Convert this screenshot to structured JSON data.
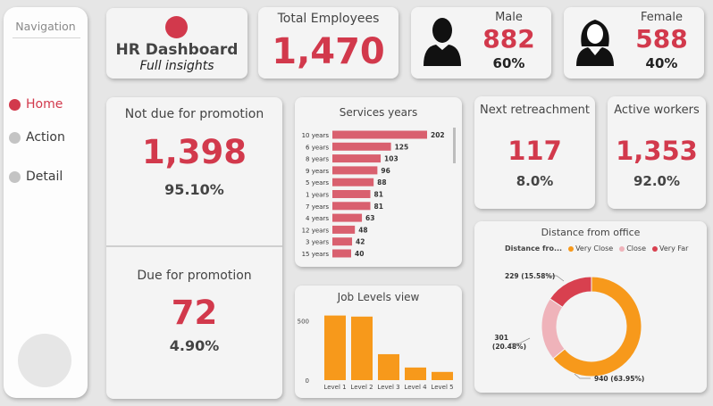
{
  "nav": {
    "title": "Navigation",
    "items": [
      {
        "label": "Home",
        "active": true
      },
      {
        "label": "Action",
        "active": false
      },
      {
        "label": "Detail",
        "active": false
      }
    ]
  },
  "header": {
    "title": "HR Dashboard",
    "subtitle": "Full insights",
    "total_label": "Total Employees",
    "total_value": "1,470",
    "male_label": "Male",
    "male_value": "882",
    "male_pct": "60%",
    "female_label": "Female",
    "female_value": "588",
    "female_pct": "40%"
  },
  "promotion": {
    "not_due_label": "Not due for promotion",
    "not_due_value": "1,398",
    "not_due_pct": "95.10%",
    "due_label": "Due for promotion",
    "due_value": "72",
    "due_pct": "4.90%"
  },
  "kpis": {
    "retreat_label": "Next retreachment",
    "retreat_value": "117",
    "retreat_pct": "8.0%",
    "active_label": "Active workers",
    "active_value": "1,353",
    "active_pct": "92.0%"
  },
  "colors": {
    "accent": "#d2394c",
    "bar_red": "#d9606f",
    "orange": "#f7991b",
    "pink": "#efb3ba",
    "dark_red": "#d8404f"
  },
  "chart_data": [
    {
      "type": "bar",
      "orientation": "horizontal",
      "title": "Services years",
      "categories": [
        "10 years",
        "6 years",
        "8 years",
        "9 years",
        "5 years",
        "1 years",
        "7 years",
        "4 years",
        "12 years",
        "3 years",
        "15 years"
      ],
      "values": [
        202,
        125,
        103,
        96,
        88,
        81,
        81,
        63,
        48,
        42,
        40
      ]
    },
    {
      "type": "bar",
      "title": "Job Levels view",
      "categories": [
        "Level 1",
        "Level 2",
        "Level 3",
        "Level 4",
        "Level 5"
      ],
      "values": [
        543,
        534,
        218,
        106,
        69
      ],
      "ylim": [
        0,
        600
      ],
      "yticks": [
        "0",
        "500"
      ]
    },
    {
      "type": "pie",
      "title": "Distance from office",
      "legend_title": "Distance fro...",
      "legend": [
        {
          "name": "Very Close",
          "color": "#f7991b"
        },
        {
          "name": "Close",
          "color": "#efb3ba"
        },
        {
          "name": "Very Far",
          "color": "#d8404f"
        }
      ],
      "slices": [
        {
          "name": "Very Close",
          "value": 940,
          "label": "940 (63.95%)",
          "color": "#f7991b"
        },
        {
          "name": "Close",
          "value": 301,
          "label1": "301",
          "label2": "(20.48%)",
          "color": "#efb3ba"
        },
        {
          "name": "Very Far",
          "value": 229,
          "label": "229 (15.58%)",
          "color": "#d8404f"
        }
      ]
    }
  ]
}
